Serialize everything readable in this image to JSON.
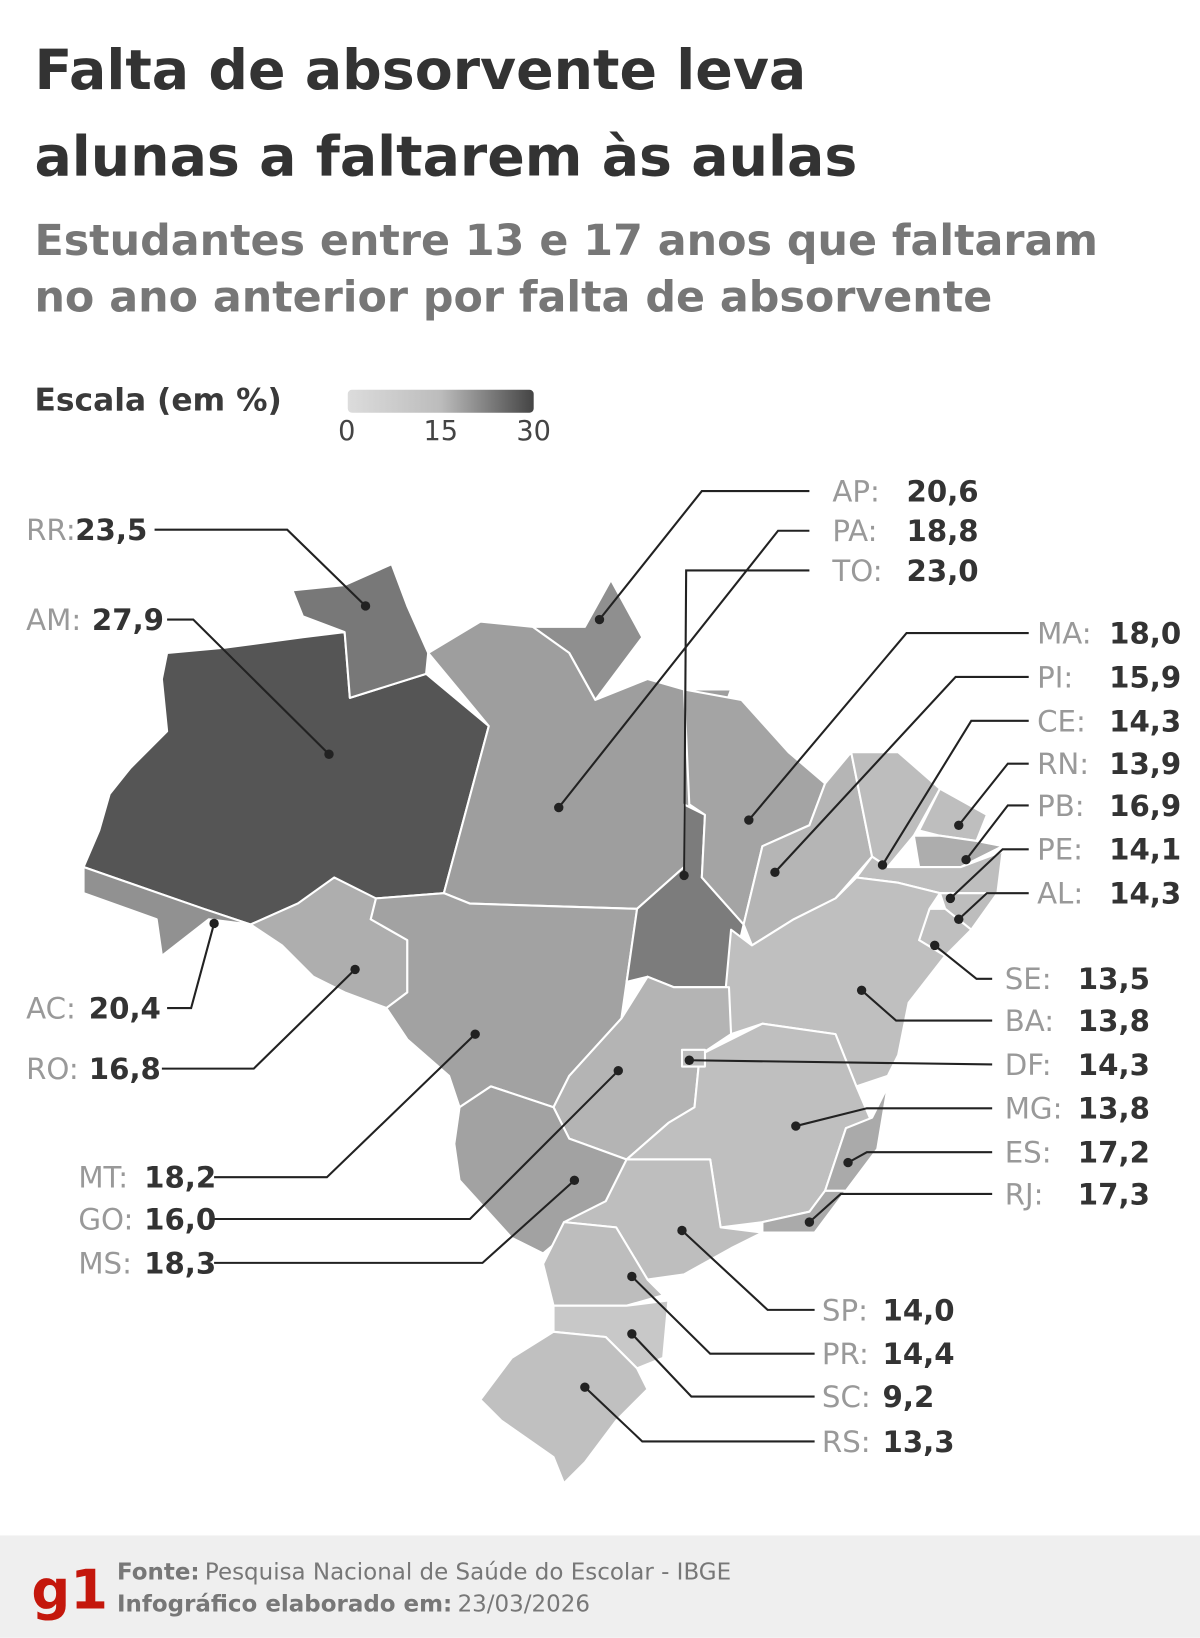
{
  "chart_data": {
    "type": "choropleth-map",
    "title": "Falta de absorvente leva alunas a faltarem às aulas",
    "subtitle": "Estudantes entre 13 e 17 anos que faltaram no ano anterior por falta de absorvente",
    "title_lines": [
      "Falta de absorvente leva",
      "alunas a faltarem às aulas"
    ],
    "subtitle_lines": [
      "Estudantes entre 13 e 17 anos que faltaram",
      "no ano anterior por falta de absorvente"
    ],
    "scale": {
      "label": "Escala (em %)",
      "ticks": [
        "0",
        "15",
        "30"
      ],
      "range": [
        0,
        30
      ],
      "colors": [
        "#dcdcdc",
        "#bcbcbc",
        "#444444"
      ]
    },
    "states": [
      {
        "code": "RR",
        "label": "RR:",
        "value": 23.5,
        "value_text": "23,5"
      },
      {
        "code": "AM",
        "label": "AM:",
        "value": 27.9,
        "value_text": "27,9"
      },
      {
        "code": "AC",
        "label": "AC:",
        "value": 20.4,
        "value_text": "20,4"
      },
      {
        "code": "RO",
        "label": "RO:",
        "value": 16.8,
        "value_text": "16,8"
      },
      {
        "code": "MT",
        "label": "MT:",
        "value": 18.2,
        "value_text": "18,2"
      },
      {
        "code": "GO",
        "label": "GO:",
        "value": 16.0,
        "value_text": "16,0"
      },
      {
        "code": "MS",
        "label": "MS:",
        "value": 18.3,
        "value_text": "18,3"
      },
      {
        "code": "AP",
        "label": "AP:",
        "value": 20.6,
        "value_text": "20,6"
      },
      {
        "code": "PA",
        "label": "PA:",
        "value": 18.8,
        "value_text": "18,8"
      },
      {
        "code": "TO",
        "label": "TO:",
        "value": 23.0,
        "value_text": "23,0"
      },
      {
        "code": "MA",
        "label": "MA:",
        "value": 18.0,
        "value_text": "18,0"
      },
      {
        "code": "PI",
        "label": "PI:",
        "value": 15.9,
        "value_text": "15,9"
      },
      {
        "code": "CE",
        "label": "CE:",
        "value": 14.3,
        "value_text": "14,3"
      },
      {
        "code": "RN",
        "label": "RN:",
        "value": 13.9,
        "value_text": "13,9"
      },
      {
        "code": "PB",
        "label": "PB:",
        "value": 16.9,
        "value_text": "16,9"
      },
      {
        "code": "PE",
        "label": "PE:",
        "value": 14.1,
        "value_text": "14,1"
      },
      {
        "code": "AL",
        "label": "AL:",
        "value": 14.3,
        "value_text": "14,3"
      },
      {
        "code": "SE",
        "label": "SE:",
        "value": 13.5,
        "value_text": "13,5"
      },
      {
        "code": "BA",
        "label": "BA:",
        "value": 13.8,
        "value_text": "13,8"
      },
      {
        "code": "DF",
        "label": "DF:",
        "value": 14.3,
        "value_text": "14,3"
      },
      {
        "code": "MG",
        "label": "MG:",
        "value": 13.8,
        "value_text": "13,8"
      },
      {
        "code": "ES",
        "label": "ES:",
        "value": 17.2,
        "value_text": "17,2"
      },
      {
        "code": "RJ",
        "label": "RJ:",
        "value": 17.3,
        "value_text": "17,3"
      },
      {
        "code": "SP",
        "label": "SP:",
        "value": 14.0,
        "value_text": "14,0"
      },
      {
        "code": "PR",
        "label": "PR:",
        "value": 14.4,
        "value_text": "14,4"
      },
      {
        "code": "SC",
        "label": "SC:",
        "value": 9.2,
        "value_text": "9,2"
      },
      {
        "code": "RS",
        "label": "RS:",
        "value": 13.3,
        "value_text": "13,3"
      }
    ]
  },
  "footer": {
    "logo": "g1",
    "source_label": "Fonte:",
    "source": "Pesquisa Nacional de Saúde do Escolar - IBGE",
    "date_label": "Infográfico elaborado em:",
    "date": "23/03/2026",
    "brand_color": "#c4170c"
  }
}
